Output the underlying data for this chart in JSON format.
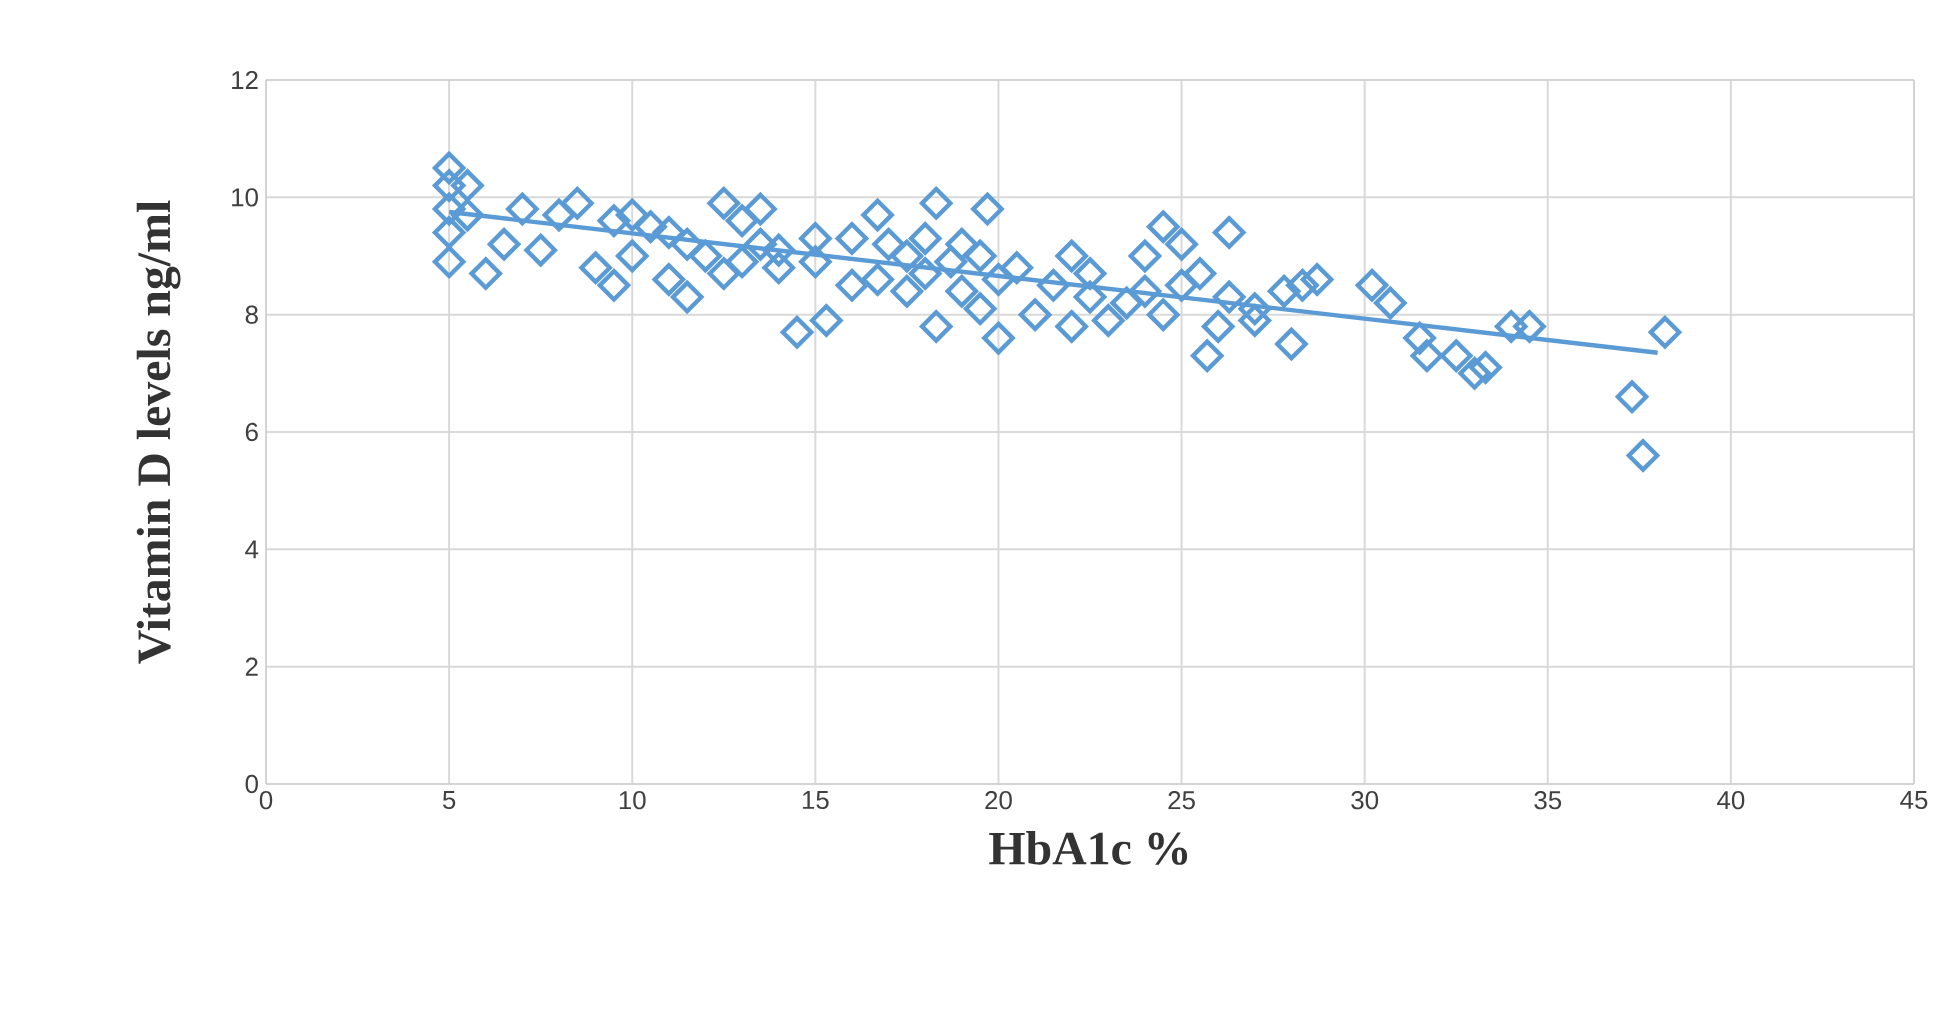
{
  "chart_data": {
    "type": "scatter",
    "xlabel": "HbA1c %",
    "ylabel": "Vitamin D levels ng/ml",
    "xlim": [
      0,
      45
    ],
    "xticks": [
      0,
      5,
      10,
      15,
      20,
      25,
      30,
      35,
      40,
      45
    ],
    "ylim": [
      0,
      12
    ],
    "yticks": [
      0,
      2,
      4,
      6,
      8,
      10,
      12
    ],
    "grid": true,
    "marker": "diamond",
    "series": [
      {
        "color": "#5b9bd5",
        "x": [
          5,
          5,
          5,
          5,
          5,
          5.5,
          5.5,
          6,
          6.5,
          7,
          7.5,
          8,
          8.5,
          9,
          9.5,
          9.5,
          10,
          10,
          10.5,
          11,
          11,
          11.5,
          11.5,
          12,
          12.5,
          12.5,
          13,
          13,
          13.5,
          13.5,
          14,
          14,
          14.5,
          15,
          15,
          15.3,
          16,
          16,
          16.7,
          16.7,
          17,
          17.5,
          17.5,
          18,
          18,
          18.3,
          18.3,
          18.7,
          19,
          19,
          19.5,
          19.5,
          19.7,
          20,
          20,
          20.5,
          21,
          21.5,
          22,
          22,
          22.5,
          22.5,
          23,
          23.5,
          24,
          24,
          24.5,
          24.5,
          25,
          25,
          25.5,
          25.7,
          26,
          26.3,
          26.3,
          27,
          27,
          27.8,
          28,
          28.3,
          28.7,
          30.2,
          30.7,
          31.5,
          31.7,
          32.5,
          33,
          33.3,
          34,
          34.5,
          37.3,
          37.6,
          38.2
        ],
        "values": [
          10.5,
          9.8,
          9.4,
          8.9,
          10.2,
          10.2,
          9.7,
          8.7,
          9.2,
          9.8,
          9.1,
          9.7,
          9.9,
          8.8,
          8.5,
          9.6,
          9.0,
          9.7,
          9.5,
          8.6,
          9.4,
          8.3,
          9.2,
          9.0,
          9.9,
          8.7,
          9.6,
          8.9,
          9.8,
          9.2,
          8.8,
          9.1,
          7.7,
          9.3,
          8.9,
          7.9,
          8.5,
          9.3,
          9.7,
          8.6,
          9.2,
          8.4,
          9.0,
          9.3,
          8.7,
          9.9,
          7.8,
          8.9,
          9.2,
          8.4,
          8.1,
          9.0,
          9.8,
          7.6,
          8.6,
          8.8,
          8.0,
          8.5,
          9.0,
          7.8,
          8.7,
          8.3,
          7.9,
          8.2,
          8.4,
          9.0,
          9.5,
          8.0,
          9.2,
          8.5,
          8.7,
          7.3,
          7.8,
          9.4,
          8.3,
          7.9,
          8.1,
          8.4,
          7.5,
          8.5,
          8.6,
          8.5,
          8.2,
          7.6,
          7.3,
          7.3,
          7.0,
          7.1,
          7.8,
          7.8,
          6.6,
          5.6,
          7.7
        ]
      },
      {
        "type": "line",
        "color": "#5b9bd5",
        "marker": "none",
        "x": [
          5,
          38
        ],
        "values": [
          9.75,
          7.35
        ]
      }
    ]
  }
}
